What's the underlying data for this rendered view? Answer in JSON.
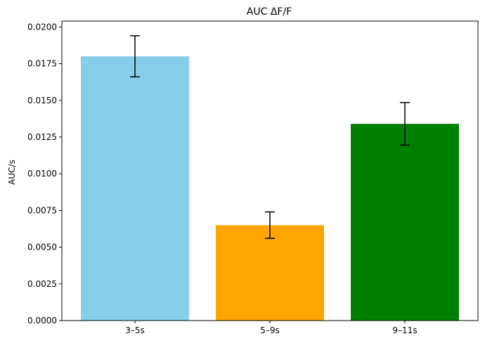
{
  "chart_data": {
    "type": "bar",
    "title": "AUC ΔF/F",
    "xlabel": "",
    "ylabel": "AUC/s",
    "categories": [
      "3–5s",
      "5–9s",
      "9–11s"
    ],
    "values": [
      0.018,
      0.0065,
      0.0134
    ],
    "errors": [
      0.0014,
      0.0009,
      0.00145
    ],
    "colors": [
      "#87CEEB",
      "#FFA500",
      "#008000"
    ],
    "ylim": [
      0,
      0.0204
    ],
    "yticks": [
      "0.0000",
      "0.0025",
      "0.0050",
      "0.0075",
      "0.0100",
      "0.0125",
      "0.0150",
      "0.0175",
      "0.0200"
    ],
    "grid": false,
    "legend": "none"
  }
}
